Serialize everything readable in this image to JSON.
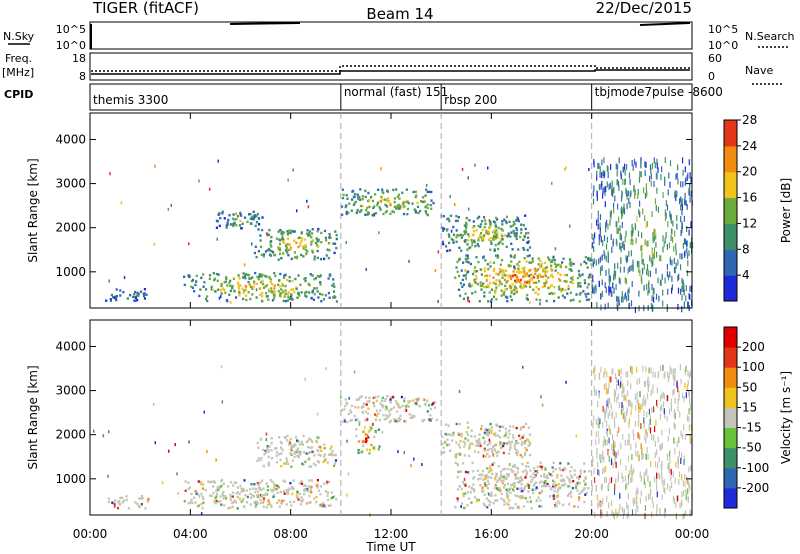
{
  "header": {
    "title_left": "TIGER (fitACF)",
    "title_center": "Beam 14",
    "date": "22/Dec/2015"
  },
  "top_panels": {
    "nsky_label": "N.Sky",
    "nsky_ticks": [
      "10^5",
      "10^0"
    ],
    "nsearch_label": "N.Search",
    "nsearch_ticks": [
      "10^5",
      "10^0"
    ],
    "freq_label_1": "Freq.",
    "freq_label_2": "[MHz]",
    "freq_ticks": [
      "18",
      "8"
    ],
    "nave_label": "Nave",
    "nave_ticks": [
      "60",
      "0"
    ],
    "cpid_label": "CPID",
    "cpid_segments": [
      {
        "name": "themis 3300",
        "start_h": 0,
        "end_h": 10
      },
      {
        "name": "normal (fast) 151",
        "start_h": 10,
        "end_h": 14
      },
      {
        "name": "rbsp 200",
        "start_h": 14,
        "end_h": 20
      },
      {
        "name": "tbjmode7pulse -8600",
        "start_h": 20,
        "end_h": 24
      }
    ]
  },
  "x_axis": {
    "label": "Time UT",
    "ticks": [
      "00:00",
      "04:00",
      "08:00",
      "12:00",
      "16:00",
      "20:00",
      "00:00"
    ],
    "tick_hours": [
      0,
      4,
      8,
      12,
      16,
      20,
      24
    ]
  },
  "chart_data": [
    {
      "type": "heatmap",
      "panel": "power",
      "ylabel": "Slant Range [km]",
      "yticks": [
        1000,
        2000,
        3000,
        4000
      ],
      "ylim": [
        180,
        4600
      ],
      "xlim_hours": [
        0,
        24
      ],
      "colorbar_label": "Power [dB]",
      "colorbar_ticks": [
        "4",
        "8",
        "12",
        "16",
        "20",
        "24",
        "28"
      ],
      "colorbar_colors": [
        "#1f2bd9",
        "#2f67b3",
        "#3f8f6a",
        "#69ab3c",
        "#f0c31d",
        "#f28c10",
        "#e23617"
      ],
      "mode_change_hours": [
        10,
        14,
        20
      ],
      "echo_regions": [
        {
          "t0": 0.6,
          "t1": 2.3,
          "r0": 350,
          "r1": 650,
          "level": 0.35
        },
        {
          "t0": 3.7,
          "t1": 9.8,
          "r0": 350,
          "r1": 1000,
          "level": 0.7
        },
        {
          "t0": 6.5,
          "t1": 9.8,
          "r0": 1300,
          "r1": 2000,
          "level": 0.65
        },
        {
          "t0": 5.0,
          "t1": 7.0,
          "r0": 2000,
          "r1": 2400,
          "level": 0.45
        },
        {
          "t0": 10.0,
          "t1": 13.8,
          "r0": 2300,
          "r1": 2900,
          "level": 0.65
        },
        {
          "t0": 14.0,
          "t1": 17.5,
          "r0": 1500,
          "r1": 2300,
          "level": 0.6
        },
        {
          "t0": 14.5,
          "t1": 20.0,
          "r0": 350,
          "r1": 1400,
          "level": 0.8
        },
        {
          "t0": 20.0,
          "t1": 24.0,
          "r0": 200,
          "r1": 3600,
          "level": 0.5
        }
      ]
    },
    {
      "type": "heatmap",
      "panel": "velocity",
      "ylabel": "Slant Range [km]",
      "yticks": [
        1000,
        2000,
        3000,
        4000
      ],
      "ylim": [
        180,
        4600
      ],
      "xlim_hours": [
        0,
        24
      ],
      "colorbar_label": "Velocity [m s⁻¹]",
      "colorbar_ticks": [
        "200",
        "100",
        "50",
        "15",
        "-15",
        "-50",
        "-100",
        "-200"
      ],
      "colorbar_colors": [
        "#1f2bd9",
        "#2f67b3",
        "#3f8f6a",
        "#69c23c",
        "#c4c4b8",
        "#f0c31d",
        "#f28c10",
        "#e23617",
        "#e00000"
      ],
      "mode_change_hours": [
        10,
        14,
        20
      ],
      "echo_regions": [
        {
          "t0": 0.6,
          "t1": 2.3,
          "r0": 350,
          "r1": 650,
          "level": 0.45
        },
        {
          "t0": 3.7,
          "t1": 9.8,
          "r0": 350,
          "r1": 1000,
          "level": 0.45
        },
        {
          "t0": 6.5,
          "t1": 9.8,
          "r0": 1300,
          "r1": 2000,
          "level": 0.45
        },
        {
          "t0": 10.0,
          "t1": 13.8,
          "r0": 2300,
          "r1": 2900,
          "level": 0.55
        },
        {
          "t0": 10.5,
          "t1": 11.5,
          "r0": 1600,
          "r1": 2200,
          "level": 0.9
        },
        {
          "t0": 14.0,
          "t1": 17.5,
          "r0": 1500,
          "r1": 2300,
          "level": 0.45
        },
        {
          "t0": 14.5,
          "t1": 20.0,
          "r0": 350,
          "r1": 1400,
          "level": 0.45
        },
        {
          "t0": 20.0,
          "t1": 24.0,
          "r0": 200,
          "r1": 3600,
          "level": 0.55
        }
      ]
    }
  ]
}
